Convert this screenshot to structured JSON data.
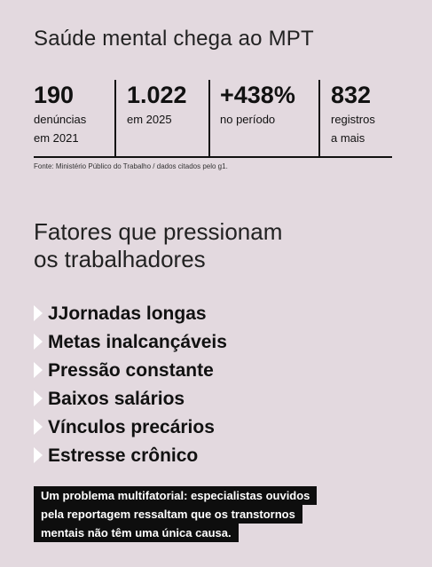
{
  "header": {
    "title": "Saúde mental chega ao MPT"
  },
  "stats": [
    {
      "value": "190",
      "label": [
        "denúncias",
        "em 2021"
      ]
    },
    {
      "value": "1.022",
      "label": [
        "em 2025"
      ]
    },
    {
      "value": "+438%",
      "label": [
        "no período"
      ]
    },
    {
      "value": "832",
      "label": [
        "registros",
        "a mais"
      ]
    }
  ],
  "source": "Fonte: Ministério Público do Trabalho / dados citados pelo g1.",
  "section": {
    "title": [
      "Fatores que pressionam",
      "os trabalhadores"
    ],
    "items": [
      "JJornadas longas",
      "Metas inalcançáveis",
      "Pressão constante",
      "Baixos salários",
      "Vínculos precários",
      "Estresse crônico"
    ]
  },
  "note": [
    "Um problema multifatorial: especialistas ouvidos",
    "pela reportagem ressaltam que os transtornos",
    "mentais não têm uma única causa."
  ]
}
